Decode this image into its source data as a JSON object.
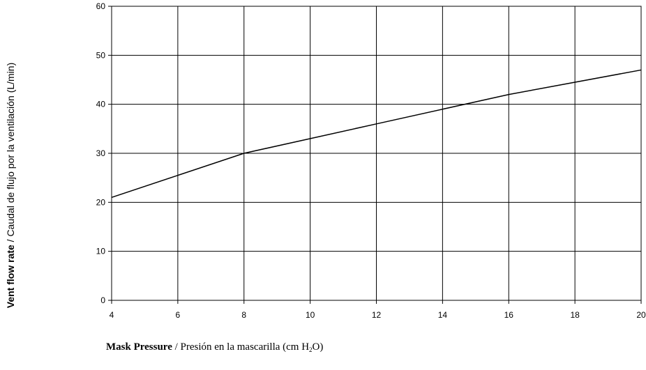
{
  "chart_data": {
    "type": "line",
    "x": [
      4,
      8,
      12,
      16,
      20
    ],
    "series": [
      {
        "values": [
          21,
          30,
          36,
          42,
          47
        ]
      }
    ],
    "xlim": [
      4,
      20
    ],
    "ylim": [
      0,
      60
    ],
    "x_ticks": [
      4,
      6,
      8,
      10,
      12,
      14,
      16,
      18,
      20
    ],
    "y_ticks": [
      0,
      10,
      20,
      30,
      40,
      50,
      60
    ],
    "grid": true,
    "line_color": "#000000",
    "ylabel": {
      "bold": "Vent flow rate",
      "rest": " / Caudal de flujo por la ventilación (L/min)"
    },
    "xlabel": {
      "bold": "Mask Pressure",
      "rest": " / Presión en la mascarilla (cm H",
      "subscript": "2",
      "tail": "O)"
    }
  }
}
